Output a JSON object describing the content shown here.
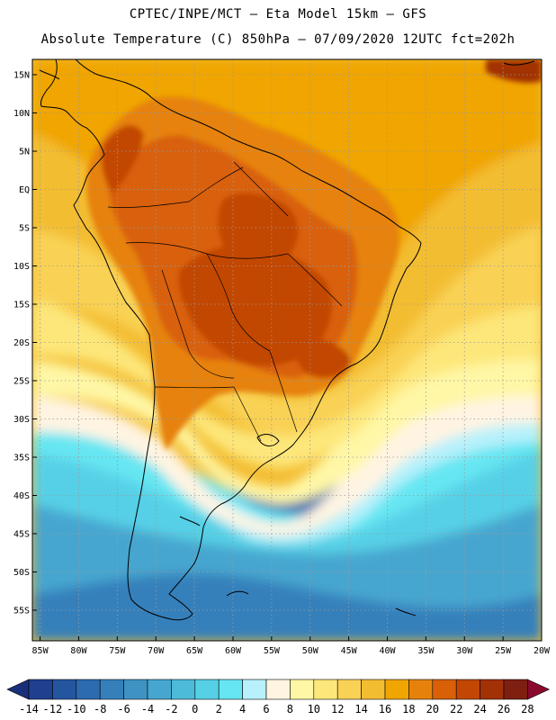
{
  "header": {
    "line1": "CPTEC/INPE/MCT –  Eta Model 15km – GFS",
    "line2": "Absolute Temperature (C) 850hPa – 07/09/2020 12UTC fct=202h"
  },
  "map": {
    "lon_range": [
      -86,
      -20
    ],
    "lat_range": [
      -59,
      17
    ],
    "lat_ticks": [
      {
        "value": 15,
        "label": "15N"
      },
      {
        "value": 10,
        "label": "10N"
      },
      {
        "value": 5,
        "label": "5N"
      },
      {
        "value": 0,
        "label": "EQ"
      },
      {
        "value": -5,
        "label": "5S"
      },
      {
        "value": -10,
        "label": "10S"
      },
      {
        "value": -15,
        "label": "15S"
      },
      {
        "value": -20,
        "label": "20S"
      },
      {
        "value": -25,
        "label": "25S"
      },
      {
        "value": -30,
        "label": "30S"
      },
      {
        "value": -35,
        "label": "35S"
      },
      {
        "value": -40,
        "label": "40S"
      },
      {
        "value": -45,
        "label": "45S"
      },
      {
        "value": -50,
        "label": "50S"
      },
      {
        "value": -55,
        "label": "55S"
      }
    ],
    "lon_ticks": [
      {
        "value": -85,
        "label": "85W"
      },
      {
        "value": -80,
        "label": "80W"
      },
      {
        "value": -75,
        "label": "75W"
      },
      {
        "value": -70,
        "label": "70W"
      },
      {
        "value": -65,
        "label": "65W"
      },
      {
        "value": -60,
        "label": "60W"
      },
      {
        "value": -55,
        "label": "55W"
      },
      {
        "value": -50,
        "label": "50W"
      },
      {
        "value": -45,
        "label": "45W"
      },
      {
        "value": -40,
        "label": "40W"
      },
      {
        "value": -35,
        "label": "35W"
      },
      {
        "value": -30,
        "label": "30W"
      },
      {
        "value": -25,
        "label": "25W"
      },
      {
        "value": -20,
        "label": "20W"
      }
    ]
  },
  "colorbar": {
    "labels": [
      "-14",
      "-12",
      "-10",
      "-8",
      "-6",
      "-4",
      "-2",
      "0",
      "2",
      "4",
      "6",
      "8",
      "10",
      "12",
      "14",
      "16",
      "18",
      "20",
      "22",
      "24",
      "26",
      "28"
    ],
    "colors": [
      "#1f3f8f",
      "#2456a0",
      "#2c6bb0",
      "#3580bb",
      "#3f93c4",
      "#46a6cf",
      "#4cbbd9",
      "#56d0e6",
      "#66e6f2",
      "#b8f1fb",
      "#fff4e2",
      "#fff7a6",
      "#fde77a",
      "#f9d255",
      "#f3bd32",
      "#f0a500",
      "#e6820b",
      "#d96007",
      "#c24705",
      "#a23106",
      "#7f1f12"
    ],
    "under_color": "#1a2f7a",
    "over_color": "#8a0a2e"
  },
  "colors": {
    "ocean_south_deep": "#2c6bb0",
    "ocean_south": "#3580bb",
    "ocean_mid": "#46a6cf",
    "ocean_cyan": "#56d0e6",
    "ocean_lightcyan": "#66e6f2",
    "pale_blue": "#b8f1fb",
    "cream": "#fff4e2",
    "pale_yellow": "#fff7a6",
    "light_yellow": "#fde77a",
    "yellow": "#f9d255",
    "gold": "#f3bd32",
    "orange": "#f0a500",
    "dark_orange": "#e6820b",
    "red_orange": "#d96007",
    "brown": "#c24705",
    "dark_brown": "#a23106",
    "coast": "#000000"
  }
}
